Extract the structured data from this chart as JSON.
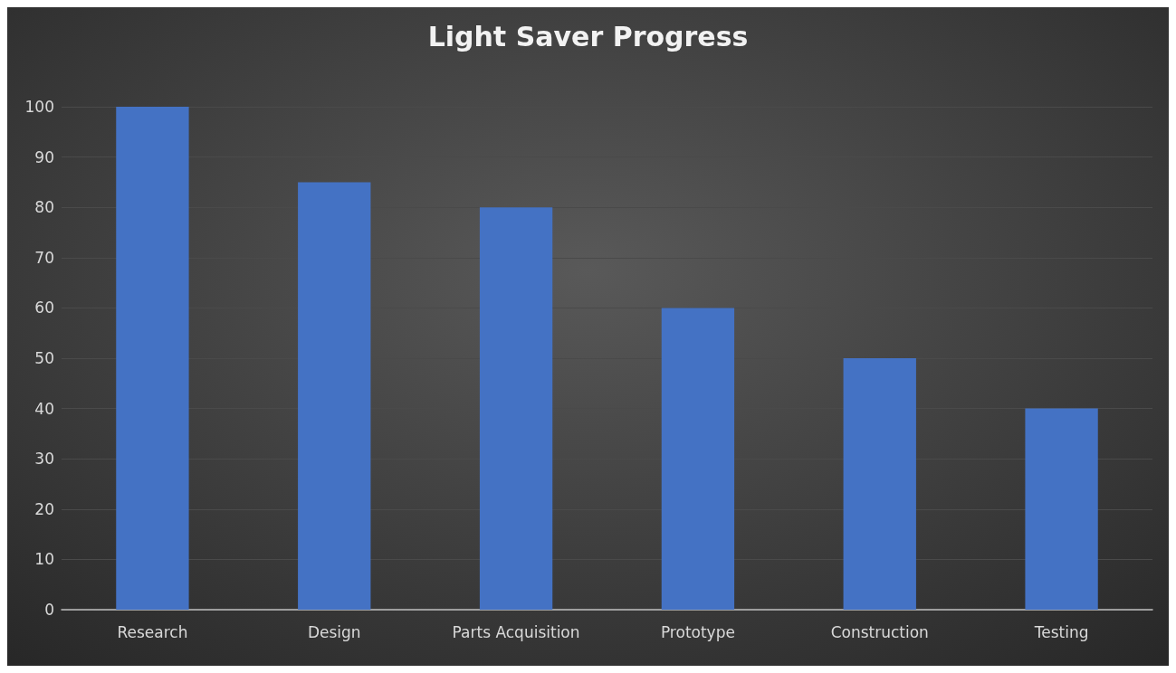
{
  "chart_data": {
    "type": "bar",
    "title": "Light Saver Progress",
    "categories": [
      "Research",
      "Design",
      "Parts Acquisition",
      "Prototype",
      "Construction",
      "Testing"
    ],
    "values": [
      100,
      85,
      80,
      60,
      50,
      40
    ],
    "color": "#4472c4",
    "ylim": [
      0,
      100
    ],
    "yticks": [
      0,
      10,
      20,
      30,
      40,
      50,
      60,
      70,
      80,
      90,
      100
    ],
    "grid": "y"
  }
}
